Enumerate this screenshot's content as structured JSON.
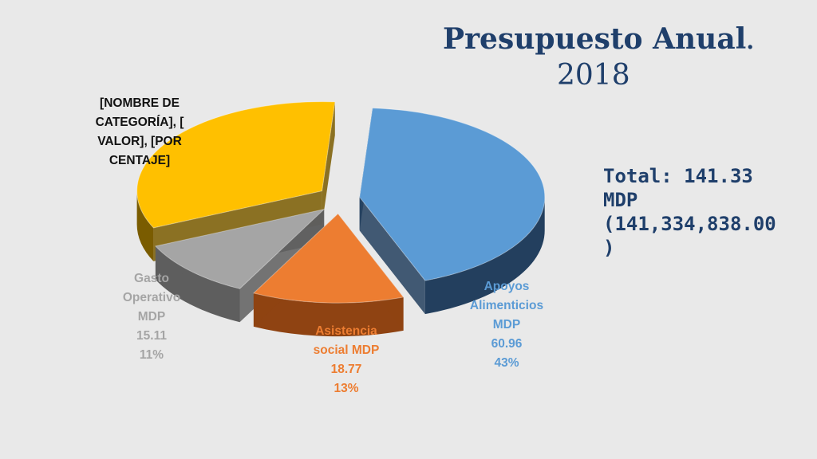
{
  "title": {
    "main": "Presupuesto Anual",
    "dot": ".",
    "year": "2018"
  },
  "total": {
    "line1": "Total: 141.33",
    "line2": "MDP",
    "line3": "(141,334,838.00",
    "line4": ")"
  },
  "colors": {
    "apoyos_top": "#5b9bd5",
    "apoyos_side": "#233f5e",
    "asistencia_top": "#ed7d31",
    "asistencia_side": "#8f4312",
    "gasto_top": "#a5a5a5",
    "gasto_side": "#5e5e5e",
    "otra_top": "#ffc000",
    "otra_side": "#7a5c00",
    "title": "#1f3f6b",
    "background": "#e9e9e9"
  },
  "labels": {
    "apoyos": {
      "l1": "Apoyos",
      "l2": "Alimenticios",
      "l3": "MDP",
      "value": "60.96",
      "pct": "43%"
    },
    "asistencia": {
      "l1": "Asistencia",
      "l2": "social MDP",
      "value": "18.77",
      "pct": "13%"
    },
    "gasto": {
      "l1": "Gasto",
      "l2": "Operativo",
      "l3": "MDP",
      "value": "15.11",
      "pct": "11%"
    },
    "otra": {
      "l1": "[NOMBRE DE",
      "l2": "CATEGORÍA], [",
      "l3": "VALOR], [POR",
      "l4": "CENTAJE]"
    }
  },
  "chart_data": {
    "type": "pie",
    "title": "Presupuesto Anual. 2018",
    "categories": [
      "Apoyos Alimenticios MDP",
      "Asistencia social MDP",
      "Gasto Operativo MDP",
      "[NOMBRE DE CATEGORÍA]"
    ],
    "values": [
      60.96,
      18.77,
      15.11,
      46.49
    ],
    "percentages": [
      43,
      13,
      11,
      33
    ],
    "value_labels": [
      "60.96",
      "18.77",
      "15.11",
      "[VALOR]"
    ],
    "percent_labels": [
      "43%",
      "13%",
      "11%",
      "[PORCENTAJE]"
    ],
    "total": 141.33,
    "legend": "none",
    "style": "3d-exploded"
  }
}
